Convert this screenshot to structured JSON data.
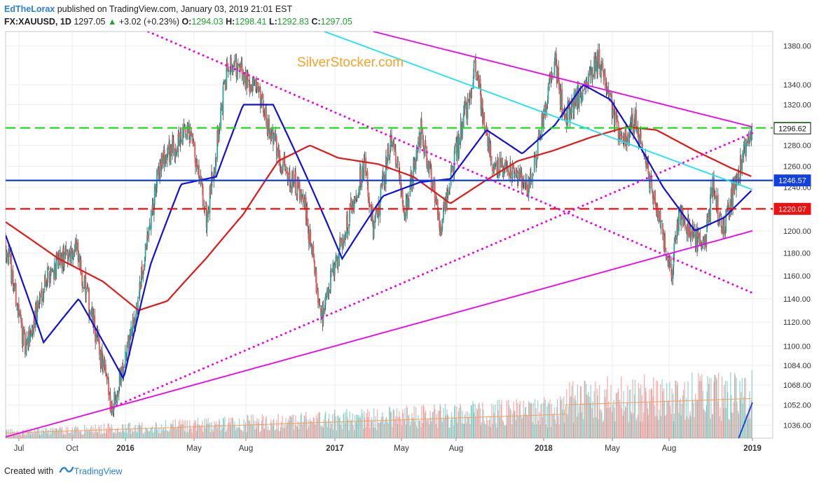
{
  "header": {
    "author": "EdTheLorax",
    "published_text": "published on TradingView.com, January 03, 2019 21:01 EST",
    "symbol": "FX:XAUUSD, 1D",
    "last": "1297.05",
    "change_arrow": "▲",
    "change": "+3.02 (+0.23%)",
    "o_label": "O:",
    "o_value": "1294.03",
    "h_label": "H:",
    "h_value": "1298.41",
    "l_label": "L:",
    "l_value": "1292.83",
    "c_label": "C:",
    "c_value": "1297.05"
  },
  "watermark": "SilverStocker.com",
  "footer": {
    "created_with": "Created with",
    "brand": "TradingView"
  },
  "colors": {
    "up": "#26a69a",
    "down": "#ef5350",
    "ma_fast": "#1010d8",
    "ma_slow": "#e01818",
    "magenta": "#ee00ee",
    "cyan": "#22e0f0",
    "green_dash": "#11dd11",
    "red_dash": "#ee1111",
    "blue_line": "#1040e0",
    "volume_ma": "#f0a060"
  },
  "chart_data": {
    "type": "candlestick",
    "y_scale": "log",
    "ylim": [
      1026,
      1395
    ],
    "x_tick_labels": [
      "Jul",
      "Oct",
      "2016",
      "May",
      "Aug",
      "2017",
      "May",
      "Aug",
      "2018",
      "May",
      "Aug",
      "2019"
    ],
    "x_tick_bold": [
      false,
      false,
      true,
      false,
      false,
      true,
      false,
      false,
      true,
      false,
      false,
      true
    ],
    "y_ticks": [
      1036,
      1052,
      1068,
      1084,
      1100,
      1120,
      1140,
      1160,
      1180,
      1200,
      1220,
      1240,
      1260,
      1280,
      1300,
      1320,
      1340,
      1380
    ],
    "y_tick_labels": [
      "1036.00",
      "1052.00",
      "1068.00",
      "1084.00",
      "1100.00",
      "1120.00",
      "1140.00",
      "1160.00",
      "1180.00",
      "1200.00",
      "1220.00",
      "1240.00",
      "1260.00",
      "1280.00",
      "1300.00",
      "1320.00",
      "1340.00",
      "1380.00"
    ],
    "time_range": [
      "2015-06-15",
      "2019-01-03"
    ],
    "price_path": [
      [
        "2015-06-15",
        1190
      ],
      [
        "2015-07-20",
        1095
      ],
      [
        "2015-08-24",
        1160
      ],
      [
        "2015-10-14",
        1185
      ],
      [
        "2015-12-17",
        1050
      ],
      [
        "2016-01-27",
        1125
      ],
      [
        "2016-03-10",
        1265
      ],
      [
        "2016-04-29",
        1292
      ],
      [
        "2016-05-30",
        1210
      ],
      [
        "2016-07-06",
        1365
      ],
      [
        "2016-08-20",
        1338
      ],
      [
        "2016-10-04",
        1268
      ],
      [
        "2016-11-15",
        1225
      ],
      [
        "2016-12-15",
        1125
      ],
      [
        "2017-02-27",
        1262
      ],
      [
        "2017-03-15",
        1198
      ],
      [
        "2017-04-17",
        1290
      ],
      [
        "2017-05-09",
        1214
      ],
      [
        "2017-06-06",
        1295
      ],
      [
        "2017-07-10",
        1205
      ],
      [
        "2017-09-08",
        1357
      ],
      [
        "2017-10-06",
        1265
      ],
      [
        "2017-12-12",
        1240
      ],
      [
        "2018-01-25",
        1366
      ],
      [
        "2018-02-08",
        1305
      ],
      [
        "2018-04-11",
        1365
      ],
      [
        "2018-05-21",
        1282
      ],
      [
        "2018-06-14",
        1305
      ],
      [
        "2018-08-16",
        1160
      ],
      [
        "2018-08-27",
        1215
      ],
      [
        "2018-10-10",
        1185
      ],
      [
        "2018-10-26",
        1240
      ],
      [
        "2018-11-12",
        1198
      ],
      [
        "2018-12-05",
        1245
      ],
      [
        "2019-01-03",
        1297
      ]
    ],
    "sma_fast_path": [
      [
        "2015-06-15",
        1196
      ],
      [
        "2015-08-20",
        1103
      ],
      [
        "2015-10-20",
        1140
      ],
      [
        "2016-01-06",
        1073
      ],
      [
        "2016-02-22",
        1170
      ],
      [
        "2016-04-15",
        1243
      ],
      [
        "2016-06-15",
        1250
      ],
      [
        "2016-08-01",
        1320
      ],
      [
        "2016-09-22",
        1320
      ],
      [
        "2016-11-11",
        1260
      ],
      [
        "2017-01-20",
        1175
      ],
      [
        "2017-04-01",
        1232
      ],
      [
        "2017-06-05",
        1245
      ],
      [
        "2017-07-27",
        1248
      ],
      [
        "2017-09-28",
        1295
      ],
      [
        "2017-11-29",
        1272
      ],
      [
        "2018-01-25",
        1300
      ],
      [
        "2018-03-15",
        1340
      ],
      [
        "2018-05-01",
        1325
      ],
      [
        "2018-06-15",
        1285
      ],
      [
        "2018-08-01",
        1240
      ],
      [
        "2018-09-25",
        1200
      ],
      [
        "2018-11-15",
        1212
      ],
      [
        "2019-01-03",
        1238
      ]
    ],
    "sma_slow_path": [
      [
        "2015-06-15",
        1208
      ],
      [
        "2015-09-15",
        1175
      ],
      [
        "2015-12-01",
        1155
      ],
      [
        "2016-02-01",
        1130
      ],
      [
        "2016-03-22",
        1138
      ],
      [
        "2016-05-28",
        1175
      ],
      [
        "2016-08-01",
        1215
      ],
      [
        "2016-10-01",
        1265
      ],
      [
        "2016-11-25",
        1280
      ],
      [
        "2017-01-13",
        1268
      ],
      [
        "2017-03-24",
        1262
      ],
      [
        "2017-05-24",
        1250
      ],
      [
        "2017-07-27",
        1225
      ],
      [
        "2017-09-22",
        1245
      ],
      [
        "2017-11-21",
        1265
      ],
      [
        "2018-01-22",
        1275
      ],
      [
        "2018-03-29",
        1288
      ],
      [
        "2018-05-30",
        1298
      ],
      [
        "2018-07-20",
        1295
      ],
      [
        "2018-09-25",
        1275
      ],
      [
        "2018-11-28",
        1258
      ],
      [
        "2019-01-03",
        1250
      ]
    ],
    "price_labels": [
      {
        "value": 1297.05,
        "text": "1297.05",
        "color": "#20c020"
      },
      {
        "value": 1296.62,
        "text": "1296.62",
        "color": "#ffffff",
        "text_color": "#111111",
        "border": "#111111"
      },
      {
        "value": 1246.57,
        "text": "1246.57",
        "color": "#1040e0"
      },
      {
        "value": 1220.07,
        "text": "1220.07",
        "color": "#ee1111"
      }
    ],
    "horizontal_lines": [
      {
        "value": 1297.05,
        "style": "dashed",
        "color": "#11dd11"
      },
      {
        "value": 1246.57,
        "style": "solid",
        "color": "#1040e0"
      },
      {
        "value": 1220.07,
        "style": "dashed",
        "color": "#ee1111"
      }
    ],
    "trendlines": [
      {
        "style": "dotted",
        "color": "#ee00ee",
        "from": [
          "2015-12-17",
          1050
        ],
        "to": [
          "2019-01-03",
          1292
        ]
      },
      {
        "style": "dotted",
        "color": "#ee00ee",
        "from": [
          "2015-11-15",
          1420
        ],
        "to": [
          "2019-01-03",
          1145
        ]
      },
      {
        "style": "solid",
        "color": "#ee00ee",
        "from": [
          "2015-06-15",
          1027
        ],
        "to": [
          "2019-01-03",
          1200
        ]
      },
      {
        "style": "solid",
        "color": "#ee00ee",
        "from": [
          "2017-03-15",
          1395
        ],
        "to": [
          "2019-01-03",
          1298
        ]
      },
      {
        "style": "solid",
        "color": "#22e0f0",
        "from": [
          "2016-12-20",
          1395
        ],
        "to": [
          "2019-01-03",
          1238
        ]
      },
      {
        "style": "solid",
        "color": "#1040e0",
        "from": [
          "2018-12-10",
          1026
        ],
        "to": [
          "2019-01-03",
          1054
        ]
      }
    ]
  }
}
